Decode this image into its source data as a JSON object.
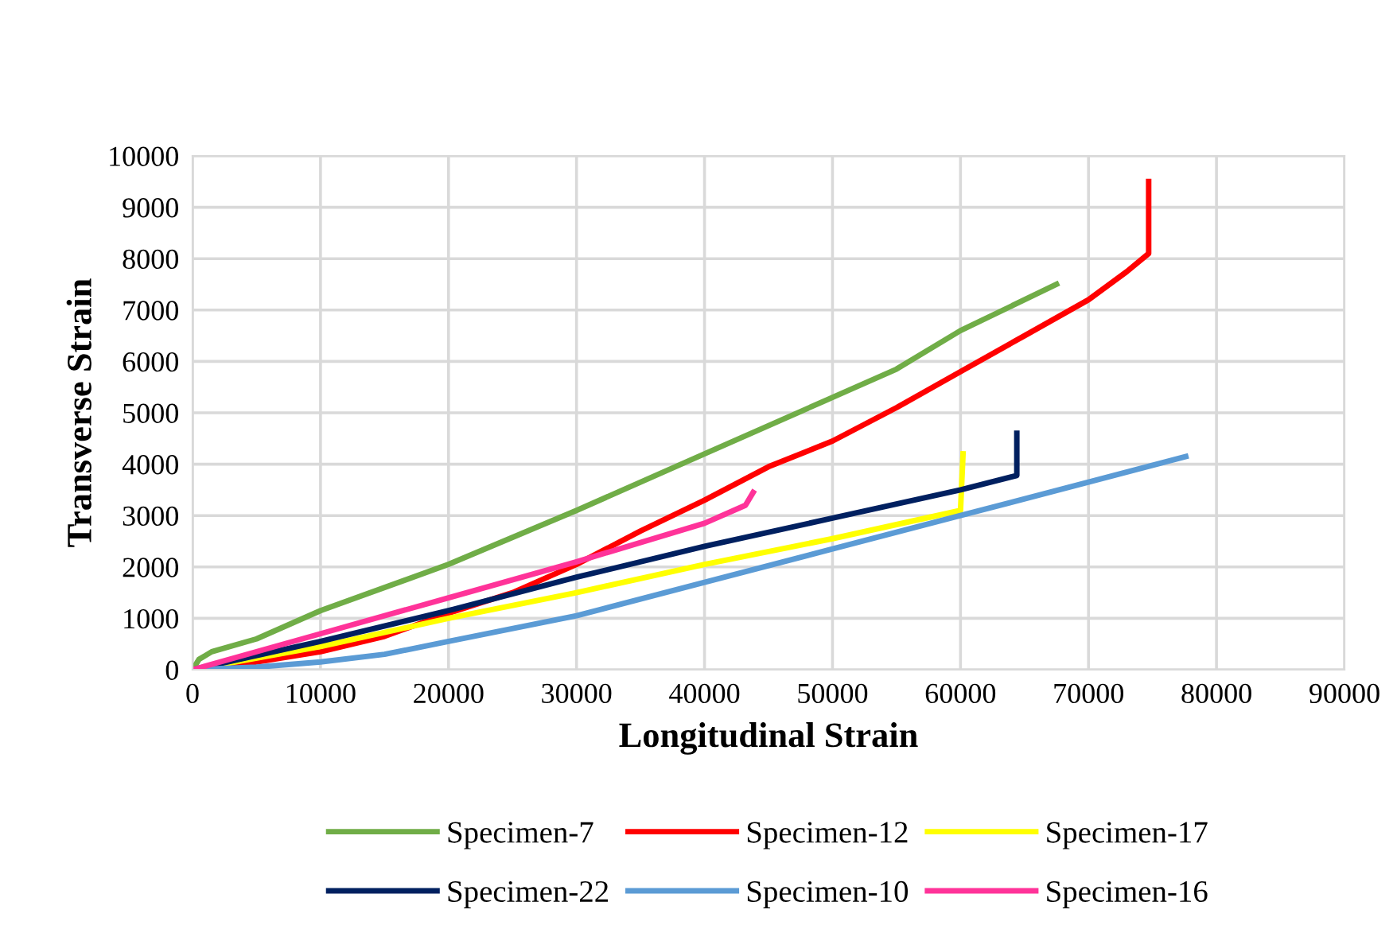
{
  "chart_data": {
    "type": "line",
    "xlabel": "Longitudinal Strain",
    "ylabel": "Transverse Strain",
    "xlim": [
      0,
      90000
    ],
    "ylim": [
      0,
      10000
    ],
    "xticks": [
      0,
      10000,
      20000,
      30000,
      40000,
      50000,
      60000,
      70000,
      80000,
      90000
    ],
    "yticks": [
      0,
      1000,
      2000,
      3000,
      4000,
      5000,
      6000,
      7000,
      8000,
      9000,
      10000
    ],
    "grid": true,
    "legend": "bottom",
    "marker": "none",
    "line_style": "solid",
    "series": [
      {
        "name": "Specimen-7",
        "color": "#70ad47",
        "x": [
          0,
          500,
          1500,
          5000,
          10000,
          20000,
          30000,
          40000,
          50000,
          55000,
          60000,
          67500
        ],
        "values": [
          0,
          200,
          350,
          600,
          1150,
          2050,
          3100,
          4200,
          5300,
          5850,
          6600,
          7500
        ]
      },
      {
        "name": "Specimen-12",
        "color": "#ff0000",
        "x": [
          0,
          5000,
          10000,
          15000,
          20000,
          25000,
          30000,
          35000,
          40000,
          45000,
          50000,
          55000,
          60000,
          65000,
          70000,
          73000,
          74700,
          74700
        ],
        "values": [
          0,
          150,
          350,
          650,
          1100,
          1500,
          2050,
          2700,
          3300,
          3950,
          4450,
          5100,
          5800,
          6500,
          7200,
          7750,
          8100,
          9500
        ]
      },
      {
        "name": "Specimen-17",
        "color": "#ffff00",
        "x": [
          0,
          10000,
          20000,
          30000,
          40000,
          50000,
          60000,
          60200
        ],
        "values": [
          0,
          450,
          1000,
          1500,
          2050,
          2550,
          3100,
          4200
        ]
      },
      {
        "name": "Specimen-22",
        "color": "#002060",
        "x": [
          0,
          10000,
          20000,
          30000,
          40000,
          50000,
          60000,
          64400,
          64400
        ],
        "values": [
          0,
          550,
          1150,
          1800,
          2400,
          2950,
          3500,
          3780,
          4600
        ]
      },
      {
        "name": "Specimen-10",
        "color": "#5b9bd5",
        "x": [
          0,
          5000,
          10000,
          15000,
          20000,
          30000,
          40000,
          50000,
          60000,
          70000,
          77600
        ],
        "values": [
          0,
          50,
          150,
          300,
          550,
          1050,
          1700,
          2350,
          3000,
          3650,
          4150
        ]
      },
      {
        "name": "Specimen-16",
        "color": "#ff3399",
        "x": [
          0,
          10000,
          20000,
          30000,
          40000,
          43200,
          43800
        ],
        "values": [
          0,
          700,
          1400,
          2100,
          2850,
          3200,
          3450
        ]
      }
    ]
  }
}
